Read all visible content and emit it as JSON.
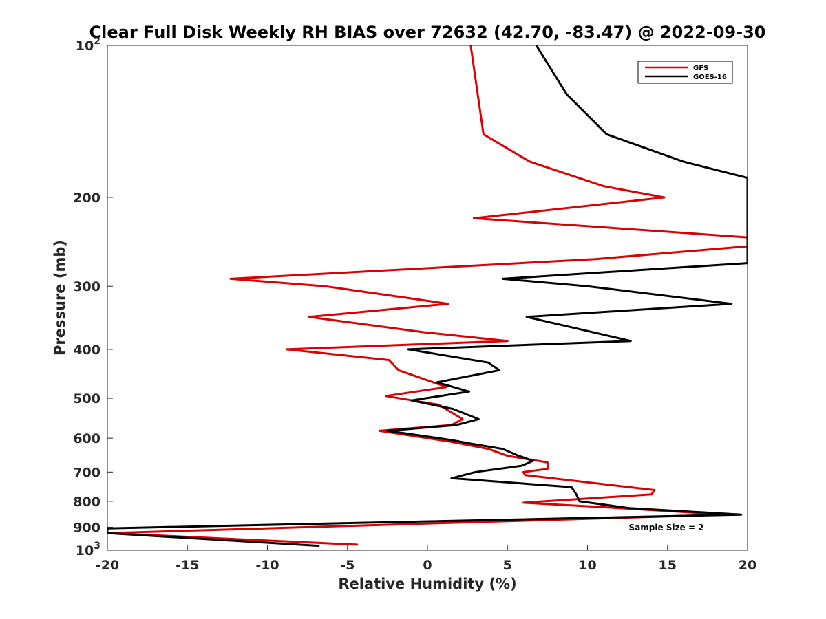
{
  "chart_data": {
    "type": "line",
    "title": "Clear Full Disk Weekly RH BIAS over 72632 (42.70, -83.47) @ 2022-09-30",
    "xlabel": "Relative Humidity (%)",
    "ylabel": "Pressure (mb)",
    "xlim": [
      -20,
      20
    ],
    "ylim": [
      100,
      1000
    ],
    "yscale": "log",
    "y_reversed": true,
    "x_ticks": [
      -20,
      -15,
      -10,
      -5,
      0,
      5,
      10,
      15,
      20
    ],
    "y_ticks": [
      {
        "value": 100,
        "label": "10",
        "sup": "2"
      },
      {
        "value": 200,
        "label": "200"
      },
      {
        "value": 300,
        "label": "300"
      },
      {
        "value": 400,
        "label": "400"
      },
      {
        "value": 500,
        "label": "500"
      },
      {
        "value": 600,
        "label": "600"
      },
      {
        "value": 700,
        "label": "700"
      },
      {
        "value": 800,
        "label": "800"
      },
      {
        "value": 900,
        "label": "900"
      },
      {
        "value": 1000,
        "label": "10",
        "sup": "3"
      }
    ],
    "grid": false,
    "legend_position": "top-right",
    "annotation": "Sample Size = 2",
    "series": [
      {
        "name": "GFS",
        "color": "#dd0000",
        "points": [
          [
            2.7,
            100
          ],
          [
            3.5,
            150
          ],
          [
            6.4,
            170
          ],
          [
            11,
            190
          ],
          [
            14.8,
            200
          ],
          [
            2.9,
            220
          ],
          [
            20,
            240
          ],
          [
            20,
            250
          ],
          [
            10.5,
            265
          ],
          [
            -12.3,
            290
          ],
          [
            -6.4,
            300
          ],
          [
            1.3,
            325
          ],
          [
            -7.4,
            345
          ],
          [
            -0.2,
            370
          ],
          [
            5.0,
            385
          ],
          [
            -8.8,
            400
          ],
          [
            -2.4,
            420
          ],
          [
            -1.8,
            440
          ],
          [
            1.2,
            475
          ],
          [
            -2.6,
            495
          ],
          [
            0.7,
            515
          ],
          [
            2.2,
            550
          ],
          [
            1.5,
            565
          ],
          [
            -3.0,
            580
          ],
          [
            1.5,
            610
          ],
          [
            3.8,
            630
          ],
          [
            5.0,
            650
          ],
          [
            7.5,
            670
          ],
          [
            7.5,
            690
          ],
          [
            6.0,
            700
          ],
          [
            6.1,
            710
          ],
          [
            14.2,
            760
          ],
          [
            14.0,
            775
          ],
          [
            6.0,
            805
          ],
          [
            12.0,
            825
          ],
          [
            18.7,
            850
          ],
          [
            -20,
            925
          ],
          [
            -4.4,
            975
          ]
        ]
      },
      {
        "name": "GOES-16",
        "color": "#000000",
        "points": [
          [
            6.8,
            100
          ],
          [
            8.7,
            125
          ],
          [
            11.2,
            150
          ],
          [
            16.0,
            170
          ],
          [
            20,
            183
          ],
          [
            20,
            270
          ],
          [
            4.7,
            290
          ],
          [
            10.0,
            300
          ],
          [
            19.0,
            325
          ],
          [
            6.2,
            345
          ],
          [
            12.7,
            385
          ],
          [
            -1.2,
            400
          ],
          [
            3.8,
            425
          ],
          [
            4.5,
            440
          ],
          [
            0.6,
            465
          ],
          [
            2.6,
            485
          ],
          [
            -1.0,
            505
          ],
          [
            1.6,
            525
          ],
          [
            3.2,
            550
          ],
          [
            1.8,
            565
          ],
          [
            -2.5,
            580
          ],
          [
            1.5,
            605
          ],
          [
            2.7,
            615
          ],
          [
            4.7,
            630
          ],
          [
            5.7,
            650
          ],
          [
            6.6,
            665
          ],
          [
            5.9,
            680
          ],
          [
            3.0,
            700
          ],
          [
            1.5,
            720
          ],
          [
            9.0,
            750
          ],
          [
            9.3,
            775
          ],
          [
            9.5,
            800
          ],
          [
            12.6,
            825
          ],
          [
            19.6,
            850
          ],
          [
            -20,
            905
          ],
          [
            -20,
            925
          ],
          [
            -6.8,
            980
          ]
        ]
      }
    ]
  }
}
